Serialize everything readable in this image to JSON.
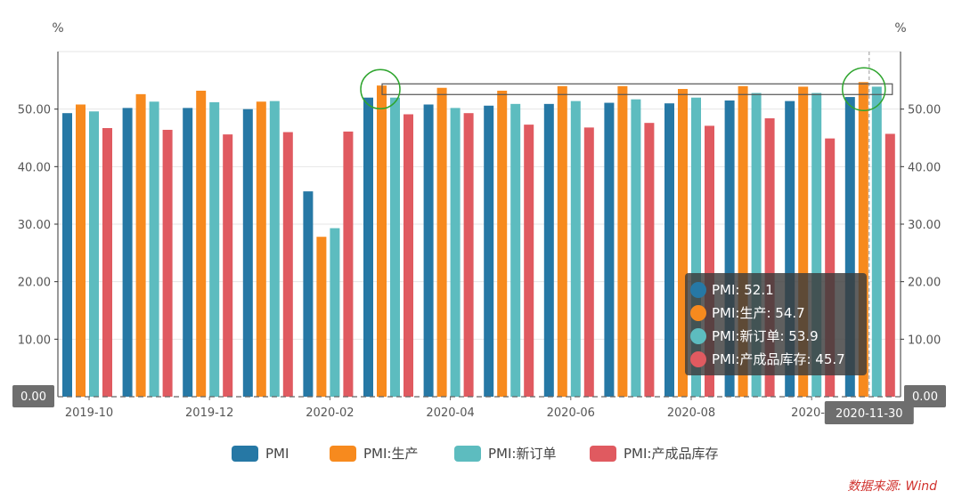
{
  "chart_data": {
    "type": "bar",
    "categories": [
      "2019-10",
      "2019-11",
      "2019-12",
      "2020-01",
      "2020-02",
      "2020-03",
      "2020-04",
      "2020-05",
      "2020-06",
      "2020-07",
      "2020-08",
      "2020-09",
      "2020-10",
      "2020-11"
    ],
    "x_tick_labels": [
      "2019-10",
      "2019-12",
      "2020-02",
      "2020-04",
      "2020-06",
      "2020-08",
      "2020-1"
    ],
    "series": [
      {
        "name": "PMI",
        "color": "#2678a5",
        "values": [
          49.3,
          50.2,
          50.2,
          50.0,
          35.7,
          52.0,
          50.8,
          50.6,
          50.9,
          51.1,
          51.0,
          51.5,
          51.4,
          52.1
        ]
      },
      {
        "name": "PMI:生产",
        "color": "#f78a1e",
        "values": [
          50.8,
          52.6,
          53.2,
          51.3,
          27.8,
          54.1,
          53.7,
          53.2,
          54.0,
          54.0,
          53.5,
          54.0,
          53.9,
          54.7
        ]
      },
      {
        "name": "PMI:新订单",
        "color": "#5dbcbf",
        "values": [
          49.6,
          51.3,
          51.2,
          51.4,
          29.3,
          52.0,
          50.2,
          50.9,
          51.4,
          51.7,
          52.0,
          52.8,
          52.8,
          53.9
        ]
      },
      {
        "name": "PMI:产成品库存",
        "color": "#e05a60",
        "values": [
          46.7,
          46.4,
          45.6,
          46.0,
          46.1,
          49.1,
          49.3,
          47.3,
          46.8,
          47.6,
          47.1,
          48.4,
          44.9,
          45.7
        ]
      }
    ],
    "ylim": [
      0,
      60
    ],
    "y_ticks": [
      0,
      10,
      20,
      30,
      40,
      50
    ],
    "y_tick_labels": [
      "0.00",
      "10.00",
      "20.00",
      "30.00",
      "40.00",
      "50.00"
    ],
    "y_unit_left": "%",
    "y_unit_right": "%",
    "legend_position": "bottom-center",
    "grid": true,
    "hover_value_label": "0.00",
    "hover_category_label": "2020-11-30",
    "hover_index": 13,
    "tooltip": {
      "items": [
        {
          "label": "PMI: 52.1",
          "color": "#2678a5"
        },
        {
          "label": "PMI:生产: 54.7",
          "color": "#f78a1e"
        },
        {
          "label": "PMI:新订单: 53.9",
          "color": "#5dbcbf"
        },
        {
          "label": "PMI:产成品库存: 45.7",
          "color": "#e05a60"
        }
      ]
    },
    "highlight": {
      "range_start_index": 5,
      "range_end_index": 13
    }
  },
  "source_note": "数据来源: Wind"
}
